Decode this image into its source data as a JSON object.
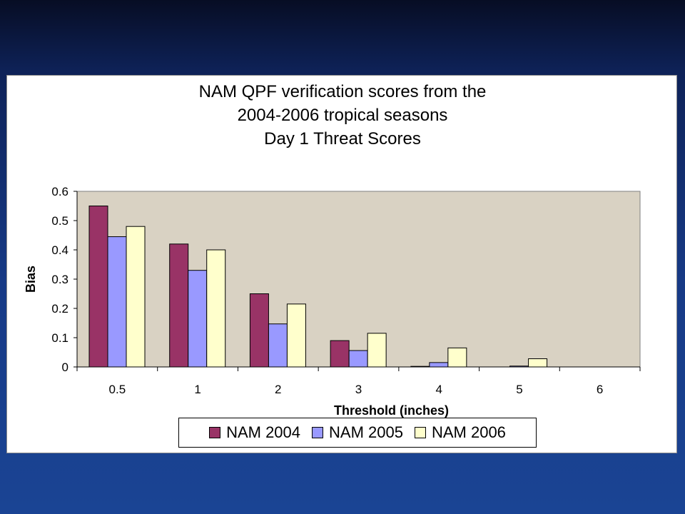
{
  "chart_data": {
    "type": "bar",
    "title_lines": [
      "NAM QPF verification scores from the",
      "2004-2006 tropical seasons",
      "Day 1 Threat Scores"
    ],
    "xlabel": "Threshold (inches)",
    "ylabel": "Bias",
    "categories": [
      "0.5",
      "1",
      "2",
      "3",
      "4",
      "5",
      "6"
    ],
    "yticks": [
      "0",
      "0.1",
      "0.2",
      "0.3",
      "0.4",
      "0.5",
      "0.6"
    ],
    "ylim": [
      0,
      0.6
    ],
    "grid": false,
    "legend_position": "bottom",
    "series": [
      {
        "name": "NAM 2004",
        "color": "#993366",
        "values": [
          0.55,
          0.42,
          0.25,
          0.09,
          0.002,
          0,
          0
        ]
      },
      {
        "name": "NAM 2005",
        "color": "#9999ff",
        "values": [
          0.445,
          0.33,
          0.147,
          0.056,
          0.015,
          0.003,
          0
        ]
      },
      {
        "name": "NAM 2006",
        "color": "#ffffcc",
        "values": [
          0.48,
          0.4,
          0.215,
          0.115,
          0.065,
          0.028,
          0
        ]
      }
    ],
    "plot_background": "#d9d2c3"
  }
}
